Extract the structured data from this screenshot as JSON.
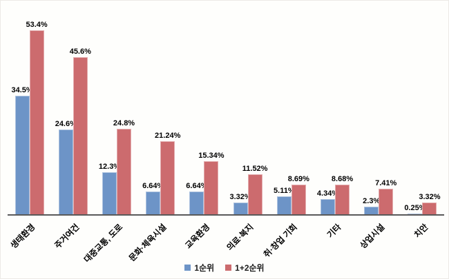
{
  "chart_data": {
    "type": "bar",
    "title": "",
    "xlabel": "",
    "ylabel": "",
    "unit": "%",
    "ylim": [
      0,
      55
    ],
    "grid": false,
    "legend_position": "bottom",
    "category_label_rotation_deg": -45,
    "categories": [
      "생태환경",
      "주거여건",
      "대중교통, 도로",
      "문화·체육시설",
      "교육환경",
      "의료·복지",
      "취·창업 기회",
      "기타",
      "상업시설",
      "치안"
    ],
    "series": [
      {
        "name": "1순위",
        "color": "#6D94C7",
        "values": [
          34.5,
          24.6,
          12.3,
          6.64,
          6.64,
          3.32,
          5.11,
          4.34,
          2.3,
          0.25
        ],
        "labels": [
          "34.5%",
          "24.6%",
          "12.3%",
          "6.64%",
          "6.64%",
          "3.32%",
          "5.11%",
          "4.34%",
          "2.3%",
          "0.25%"
        ]
      },
      {
        "name": "1+2순위",
        "color": "#CC6B6E",
        "values": [
          53.4,
          45.6,
          24.8,
          21.24,
          15.34,
          11.52,
          8.69,
          8.68,
          7.41,
          3.32
        ],
        "labels": [
          "53.4%",
          "45.6%",
          "24.8%",
          "21.24%",
          "15.34%",
          "11.52%",
          "8.69%",
          "8.68%",
          "7.41%",
          "3.32%"
        ]
      }
    ]
  },
  "colors": {
    "axis": "#595959",
    "value_label": "#000000",
    "background": "#fefefc"
  }
}
